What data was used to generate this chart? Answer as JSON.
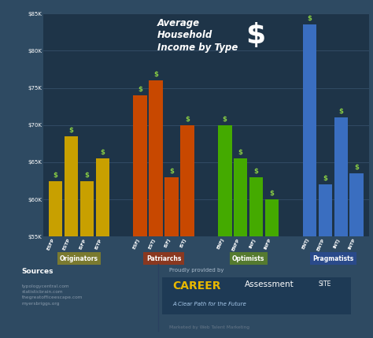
{
  "groups": [
    {
      "name": "Originators",
      "color": "#c8a000",
      "name_bg": "#7a7a30",
      "bars": [
        {
          "label": "ESFP",
          "value": 62500
        },
        {
          "label": "ESTP",
          "value": 68500
        },
        {
          "label": "ISFP",
          "value": 62500
        },
        {
          "label": "ISTP",
          "value": 65500
        }
      ]
    },
    {
      "name": "Patriarchs",
      "color": "#c84800",
      "name_bg": "#8a3820",
      "bars": [
        {
          "label": "ESFJ",
          "value": 74000
        },
        {
          "label": "ESTJ",
          "value": 76000
        },
        {
          "label": "ISFJ",
          "value": 63000
        },
        {
          "label": "ISTJ",
          "value": 70000
        }
      ]
    },
    {
      "name": "Optimists",
      "color": "#44aa00",
      "name_bg": "#557a30",
      "bars": [
        {
          "label": "ENFJ",
          "value": 70000
        },
        {
          "label": "ENFP",
          "value": 65500
        },
        {
          "label": "INFJ",
          "value": 63000
        },
        {
          "label": "INFP",
          "value": 60000
        }
      ]
    },
    {
      "name": "Pragmatists",
      "color": "#3a6ec0",
      "name_bg": "#2a4a8a",
      "bars": [
        {
          "label": "ENTJ",
          "value": 83500
        },
        {
          "label": "ENTP",
          "value": 62000
        },
        {
          "label": "INTJ",
          "value": 71000
        },
        {
          "label": "INTP",
          "value": 63500
        }
      ]
    }
  ],
  "ylim": [
    55000,
    85000
  ],
  "yticks": [
    55000,
    60000,
    65000,
    70000,
    75000,
    80000,
    85000
  ],
  "ytick_labels": [
    "$55K",
    "$60K",
    "$65K",
    "$70K",
    "$75K",
    "$80K",
    "$85K"
  ],
  "bg_color": "#2e4a62",
  "chart_bg": "#1e3448",
  "grid_color": "#3a5570",
  "text_color": "#ffffff",
  "dollar_color": "#88cc44",
  "footer_bg": "#152535",
  "sources_label": "Sources",
  "sources_list": [
    "typologycentral.com",
    "statisticbrain.com",
    "thegreatofficeescape.com",
    "myersbriggs.org"
  ],
  "provided_by": "Proudly provided by",
  "career_sub": "A Clear Path for the Future",
  "marketed_by": "Marketed by Web Talent Marketing",
  "career_box_bg": "#1e3a55"
}
